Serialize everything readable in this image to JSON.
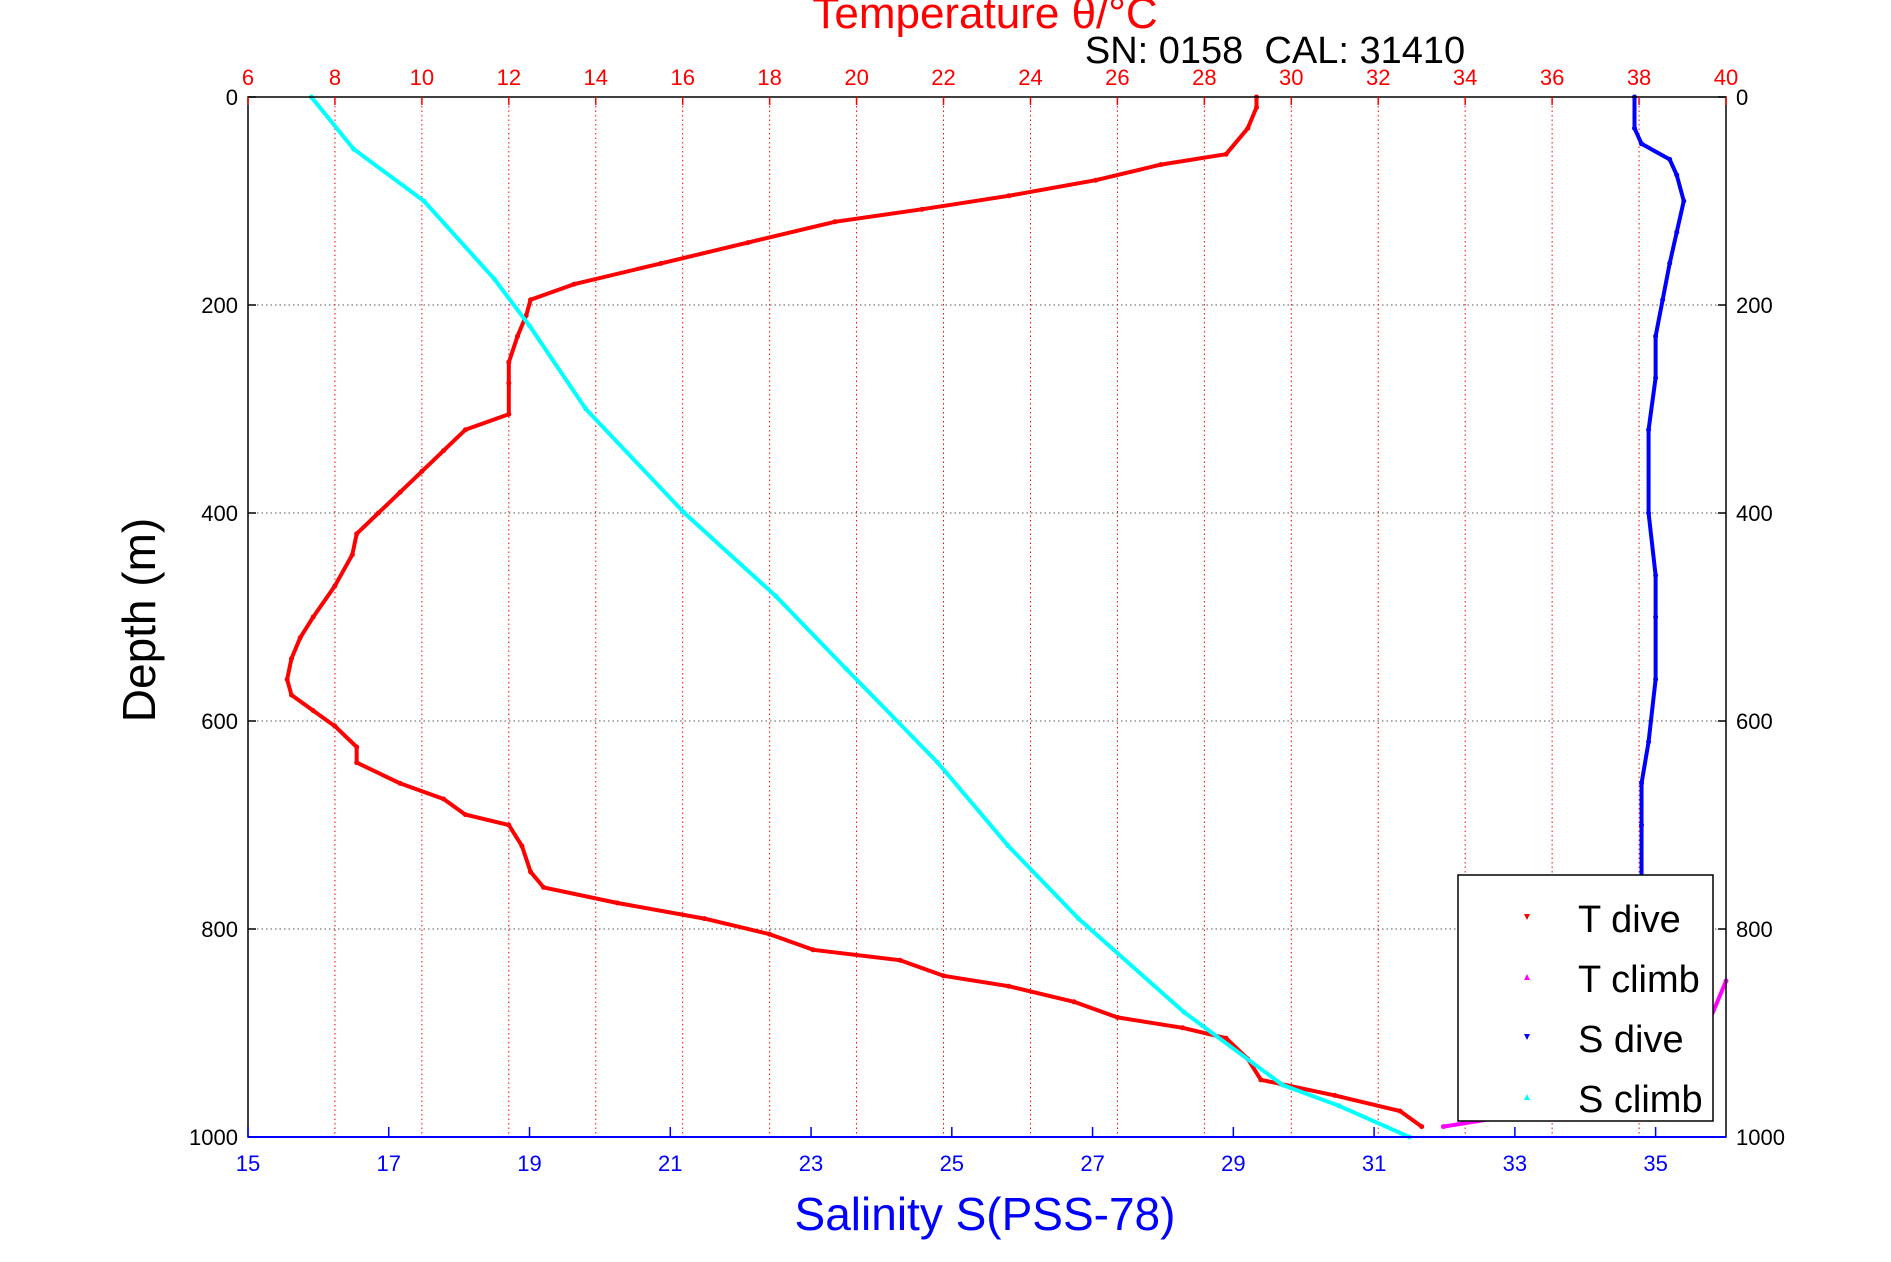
{
  "chart_data": {
    "type": "scatter",
    "title": "Temperature θ/°C",
    "annotation": "SN: 0158  CAL: 31410",
    "ylabel": "Depth (m)",
    "xlabel": "Salinity S(PSS-78)",
    "grid": true,
    "legend_position": "bottom-right",
    "y_axis": {
      "range": [
        0,
        1000
      ],
      "inverted": true,
      "ticks": [
        0,
        200,
        400,
        600,
        800,
        1000
      ]
    },
    "temperature_axis": {
      "position": "top",
      "range": [
        6,
        40
      ],
      "ticks": [
        6,
        8,
        10,
        12,
        14,
        16,
        18,
        20,
        22,
        24,
        26,
        28,
        30,
        32,
        34,
        36,
        38,
        40
      ],
      "color": "#ff0000"
    },
    "salinity_axis": {
      "position": "bottom",
      "range": [
        15,
        36
      ],
      "ticks": [
        15,
        17,
        19,
        21,
        23,
        25,
        27,
        29,
        31,
        33,
        35
      ],
      "color": "#0000ff"
    },
    "colors": {
      "t_dive": "#ff0000",
      "t_climb": "#ff00ff",
      "s_dive": "#0000ff",
      "s_climb": "#00ffff",
      "title": "#ff0000",
      "salinity_label": "#0000ff"
    },
    "series": [
      {
        "name": "T dive",
        "axis": "temperature",
        "marker": "down-triangle",
        "points": [
          [
            29.2,
            0
          ],
          [
            29.2,
            10
          ],
          [
            29.0,
            30
          ],
          [
            28.5,
            55
          ],
          [
            27.0,
            65
          ],
          [
            25.5,
            80
          ],
          [
            23.5,
            95
          ],
          [
            21.5,
            108
          ],
          [
            19.5,
            120
          ],
          [
            17.5,
            140
          ],
          [
            15.5,
            160
          ],
          [
            13.5,
            180
          ],
          [
            12.5,
            195
          ],
          [
            12.4,
            210
          ],
          [
            12.2,
            230
          ],
          [
            12.0,
            255
          ],
          [
            12.0,
            275
          ],
          [
            12.0,
            305
          ],
          [
            11.0,
            320
          ],
          [
            10.5,
            340
          ],
          [
            10.0,
            360
          ],
          [
            9.5,
            380
          ],
          [
            9.0,
            400
          ],
          [
            8.5,
            420
          ],
          [
            8.4,
            440
          ],
          [
            8.0,
            470
          ],
          [
            7.5,
            500
          ],
          [
            7.2,
            520
          ],
          [
            7.0,
            540
          ],
          [
            6.9,
            560
          ],
          [
            7.0,
            575
          ],
          [
            7.5,
            590
          ],
          [
            8.0,
            605
          ],
          [
            8.5,
            625
          ],
          [
            8.5,
            640
          ],
          [
            9.5,
            660
          ],
          [
            10.5,
            675
          ],
          [
            11.0,
            690
          ],
          [
            12.0,
            700
          ],
          [
            12.3,
            720
          ],
          [
            12.5,
            745
          ],
          [
            12.8,
            760
          ],
          [
            14.5,
            775
          ],
          [
            16.5,
            790
          ],
          [
            18.0,
            805
          ],
          [
            19.0,
            820
          ],
          [
            21.0,
            830
          ],
          [
            22.0,
            845
          ],
          [
            23.5,
            855
          ],
          [
            25.0,
            870
          ],
          [
            26.0,
            885
          ],
          [
            27.5,
            895
          ],
          [
            28.5,
            905
          ],
          [
            29.0,
            925
          ],
          [
            29.3,
            945
          ],
          [
            31.0,
            960
          ],
          [
            32.5,
            975
          ],
          [
            33.0,
            990
          ]
        ]
      },
      {
        "name": "T climb",
        "axis": "temperature",
        "marker": "up-triangle",
        "points": [
          [
            33.5,
            990
          ],
          [
            35.0,
            980
          ],
          [
            37.0,
            960
          ],
          [
            38.5,
            935
          ],
          [
            39.5,
            900
          ],
          [
            40.0,
            850
          ]
        ]
      },
      {
        "name": "S dive",
        "axis": "salinity",
        "marker": "down-triangle",
        "points": [
          [
            34.7,
            0
          ],
          [
            34.7,
            30
          ],
          [
            34.8,
            45
          ],
          [
            35.2,
            60
          ],
          [
            35.3,
            75
          ],
          [
            35.4,
            100
          ],
          [
            35.3,
            130
          ],
          [
            35.2,
            160
          ],
          [
            35.1,
            195
          ],
          [
            35.0,
            230
          ],
          [
            35.0,
            270
          ],
          [
            34.9,
            320
          ],
          [
            34.9,
            400
          ],
          [
            35.0,
            460
          ],
          [
            35.0,
            500
          ],
          [
            35.0,
            560
          ],
          [
            34.9,
            620
          ],
          [
            34.8,
            660
          ],
          [
            34.8,
            700
          ],
          [
            34.8,
            760
          ]
        ]
      },
      {
        "name": "S climb",
        "axis": "salinity",
        "marker": "up-triangle",
        "points": [
          [
            15.9,
            0
          ],
          [
            16.5,
            50
          ],
          [
            17.5,
            100
          ],
          [
            18.5,
            175
          ],
          [
            19.0,
            220
          ],
          [
            19.8,
            300
          ],
          [
            21.2,
            400
          ],
          [
            22.5,
            480
          ],
          [
            23.5,
            550
          ],
          [
            24.8,
            640
          ],
          [
            25.8,
            720
          ],
          [
            26.8,
            790
          ],
          [
            28.3,
            880
          ],
          [
            29.7,
            950
          ],
          [
            30.5,
            970
          ],
          [
            31.5,
            1000
          ]
        ]
      }
    ]
  }
}
